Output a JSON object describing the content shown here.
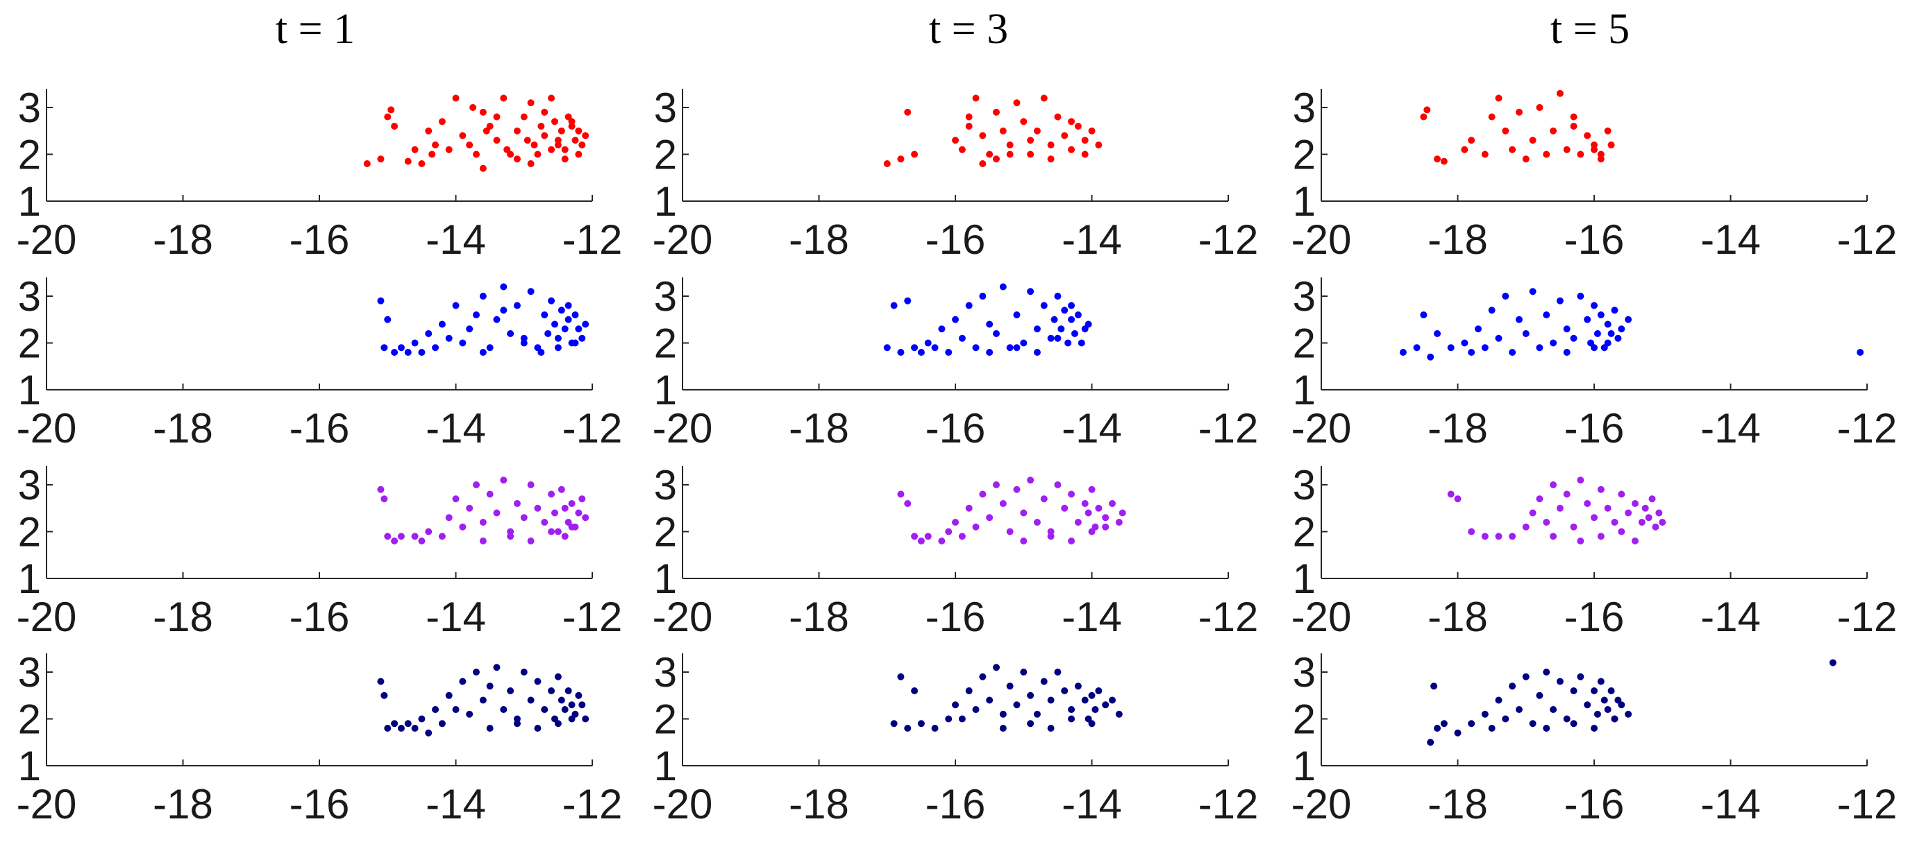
{
  "column_titles": [
    "t = 1",
    "t = 3",
    "t = 5"
  ],
  "row_colors": [
    "#ff0000",
    "#0000ff",
    "#a020f0",
    "#000080"
  ],
  "chart_data": [
    {
      "type": "scatter",
      "title": "t = 1",
      "row": 0,
      "col": 0,
      "color": "#ff0000",
      "xlim": [
        -20,
        -12
      ],
      "ylim": [
        1,
        3.4
      ],
      "xticks": [
        -20,
        -18,
        -16,
        -14,
        -12
      ],
      "yticks": [
        1,
        2,
        3
      ],
      "x": [
        -15.3,
        -15.1,
        -15.0,
        -14.95,
        -14.9,
        -14.7,
        -14.6,
        -14.5,
        -14.4,
        -14.3,
        -14.35,
        -14.1,
        -14.0,
        -14.2,
        -13.9,
        -13.8,
        -13.7,
        -13.6,
        -13.5,
        -13.4,
        -13.3,
        -13.2,
        -13.1,
        -13.0,
        -12.9,
        -12.85,
        -12.8,
        -12.75,
        -12.7,
        -12.6,
        -12.55,
        -12.5,
        -12.45,
        -12.4,
        -12.35,
        -12.3,
        -12.25,
        -12.2,
        -12.15,
        -12.1,
        -13.6,
        -13.4,
        -13.1,
        -12.95,
        -12.6,
        -12.4,
        -12.3,
        -12.2,
        -13.75,
        -13.55,
        -13.25,
        -12.9,
        -12.7,
        -12.5
      ],
      "y": [
        1.8,
        1.9,
        2.8,
        2.95,
        2.6,
        1.85,
        2.1,
        1.8,
        2.5,
        2.2,
        2.0,
        2.1,
        3.2,
        2.7,
        2.4,
        2.2,
        2.0,
        2.9,
        2.6,
        2.3,
        3.2,
        2.0,
        2.5,
        2.8,
        3.1,
        2.2,
        2.0,
        2.6,
        2.4,
        3.2,
        2.7,
        2.3,
        2.5,
        2.1,
        2.8,
        2.6,
        2.3,
        2.5,
        2.2,
        2.4,
        1.7,
        2.8,
        1.9,
        2.3,
        2.1,
        1.9,
        2.7,
        2.0,
        3.0,
        2.5,
        2.1,
        1.8,
        2.9,
        2.2
      ]
    },
    {
      "type": "scatter",
      "title": "t = 3",
      "row": 0,
      "col": 1,
      "color": "#ff0000",
      "xlim": [
        -20,
        -12
      ],
      "ylim": [
        1,
        3.4
      ],
      "xticks": [
        -20,
        -18,
        -16,
        -14,
        -12
      ],
      "yticks": [
        1,
        2,
        3
      ],
      "x": [
        -17.0,
        -16.8,
        -16.7,
        -16.6,
        -16.0,
        -15.9,
        -15.8,
        -15.7,
        -15.6,
        -15.5,
        -15.4,
        -15.3,
        -15.2,
        -15.1,
        -15.0,
        -14.9,
        -14.8,
        -14.7,
        -14.6,
        -14.5,
        -14.4,
        -14.3,
        -14.2,
        -14.1,
        -14.0,
        -13.9,
        -15.6,
        -15.2,
        -14.9,
        -14.6,
        -14.3,
        -14.1,
        -15.8,
        -15.4
      ],
      "y": [
        1.8,
        1.9,
        2.9,
        2.0,
        2.3,
        2.1,
        2.6,
        3.2,
        2.4,
        2.0,
        2.9,
        2.5,
        2.2,
        3.1,
        2.7,
        2.0,
        2.5,
        3.2,
        2.2,
        2.8,
        2.4,
        2.1,
        2.6,
        2.3,
        2.5,
        2.2,
        1.8,
        2.0,
        2.3,
        1.9,
        2.7,
        2.0,
        2.8,
        1.9
      ]
    },
    {
      "type": "scatter",
      "title": "t = 5",
      "row": 0,
      "col": 2,
      "color": "#ff0000",
      "xlim": [
        -20,
        -12
      ],
      "ylim": [
        1,
        3.4
      ],
      "xticks": [
        -20,
        -18,
        -16,
        -14,
        -12
      ],
      "yticks": [
        1,
        2,
        3
      ],
      "x": [
        -18.5,
        -18.45,
        -18.3,
        -18.2,
        -17.9,
        -17.8,
        -17.6,
        -17.5,
        -17.4,
        -17.3,
        -17.2,
        -17.1,
        -17.0,
        -16.9,
        -16.8,
        -16.7,
        -16.6,
        -16.5,
        -16.4,
        -16.3,
        -16.2,
        -16.1,
        -16.0,
        -15.9,
        -15.8,
        -15.75,
        -16.3,
        -16.0,
        -15.9
      ],
      "y": [
        2.8,
        2.95,
        1.9,
        1.85,
        2.1,
        2.3,
        2.0,
        2.8,
        3.2,
        2.5,
        2.1,
        2.9,
        1.9,
        2.3,
        3.0,
        2.0,
        2.5,
        3.3,
        2.1,
        2.6,
        2.0,
        2.4,
        2.2,
        1.9,
        2.5,
        2.2,
        2.8,
        2.1,
        2.0
      ]
    },
    {
      "type": "scatter",
      "title": "",
      "row": 1,
      "col": 0,
      "color": "#0000ff",
      "xlim": [
        -20,
        -12
      ],
      "ylim": [
        1,
        3.4
      ],
      "xticks": [
        -20,
        -18,
        -16,
        -14,
        -12
      ],
      "yticks": [
        1,
        2,
        3
      ],
      "x": [
        -15.1,
        -15.05,
        -15.0,
        -14.9,
        -14.8,
        -14.7,
        -14.6,
        -14.5,
        -14.4,
        -14.3,
        -14.2,
        -14.1,
        -14.0,
        -13.9,
        -13.8,
        -13.7,
        -13.6,
        -13.5,
        -13.4,
        -13.3,
        -13.2,
        -13.1,
        -13.0,
        -12.9,
        -12.8,
        -12.7,
        -12.65,
        -12.6,
        -12.55,
        -12.5,
        -12.45,
        -12.4,
        -12.35,
        -12.3,
        -12.25,
        -12.2,
        -12.15,
        -12.1,
        -13.6,
        -13.3,
        -13.0,
        -12.75,
        -12.5,
        -12.35,
        -12.25
      ],
      "y": [
        2.9,
        1.9,
        2.5,
        1.8,
        1.9,
        1.8,
        2.0,
        1.8,
        2.2,
        1.9,
        2.4,
        2.1,
        2.8,
        2.0,
        2.3,
        2.6,
        3.0,
        1.9,
        2.5,
        3.2,
        2.2,
        2.8,
        2.0,
        3.1,
        1.9,
        2.6,
        2.2,
        2.9,
        2.4,
        2.1,
        2.7,
        2.3,
        2.5,
        2.0,
        2.6,
        2.3,
        2.1,
        2.4,
        1.8,
        2.7,
        2.1,
        1.8,
        1.9,
        2.8,
        2.0
      ]
    },
    {
      "type": "scatter",
      "title": "",
      "row": 1,
      "col": 1,
      "color": "#0000ff",
      "xlim": [
        -20,
        -12
      ],
      "ylim": [
        1,
        3.4
      ],
      "xticks": [
        -20,
        -18,
        -16,
        -14,
        -12
      ],
      "yticks": [
        1,
        2,
        3
      ],
      "x": [
        -17.0,
        -16.9,
        -16.8,
        -16.7,
        -16.6,
        -16.5,
        -16.4,
        -16.3,
        -16.2,
        -16.1,
        -16.0,
        -15.9,
        -15.8,
        -15.7,
        -15.6,
        -15.5,
        -15.4,
        -15.3,
        -15.2,
        -15.1,
        -15.0,
        -14.9,
        -14.8,
        -14.7,
        -14.6,
        -14.55,
        -14.5,
        -14.45,
        -14.4,
        -14.35,
        -14.3,
        -14.25,
        -14.2,
        -14.1,
        -14.05,
        -15.5,
        -15.1,
        -14.8,
        -14.5,
        -14.3,
        -14.15
      ],
      "y": [
        1.9,
        2.8,
        1.8,
        2.9,
        1.9,
        1.8,
        2.0,
        1.9,
        2.3,
        1.8,
        2.5,
        2.1,
        2.8,
        1.9,
        3.0,
        2.4,
        2.2,
        3.2,
        1.9,
        2.6,
        2.0,
        3.1,
        2.3,
        2.8,
        2.1,
        2.5,
        3.0,
        2.3,
        2.7,
        2.0,
        2.5,
        2.2,
        2.6,
        2.3,
        2.4,
        1.8,
        1.9,
        1.8,
        2.1,
        2.8,
        2.0
      ]
    },
    {
      "type": "scatter",
      "title": "",
      "row": 1,
      "col": 2,
      "color": "#0000ff",
      "xlim": [
        -20,
        -12
      ],
      "ylim": [
        1,
        3.4
      ],
      "xticks": [
        -20,
        -18,
        -16,
        -14,
        -12
      ],
      "yticks": [
        1,
        2,
        3
      ],
      "x": [
        -18.8,
        -18.6,
        -18.5,
        -18.4,
        -18.3,
        -18.1,
        -17.9,
        -17.8,
        -17.7,
        -17.6,
        -17.5,
        -17.4,
        -17.3,
        -17.2,
        -17.1,
        -17.0,
        -16.9,
        -16.8,
        -16.7,
        -16.6,
        -16.5,
        -16.4,
        -16.3,
        -16.2,
        -16.1,
        -16.05,
        -16.0,
        -15.95,
        -15.9,
        -15.85,
        -15.8,
        -15.75,
        -15.7,
        -15.65,
        -15.6,
        -15.5,
        -16.4,
        -16.0,
        -15.8,
        -12.1
      ],
      "y": [
        1.8,
        1.9,
        2.6,
        1.7,
        2.2,
        1.9,
        2.0,
        1.8,
        2.3,
        1.9,
        2.7,
        2.1,
        3.0,
        1.8,
        2.5,
        2.2,
        3.1,
        1.9,
        2.6,
        2.0,
        2.9,
        2.3,
        2.1,
        3.0,
        2.5,
        2.0,
        2.8,
        2.2,
        2.6,
        1.9,
        2.4,
        2.2,
        2.7,
        2.1,
        2.3,
        2.5,
        1.8,
        1.9,
        2.0,
        1.8
      ]
    },
    {
      "type": "scatter",
      "title": "",
      "row": 2,
      "col": 0,
      "color": "#a020f0",
      "xlim": [
        -20,
        -12
      ],
      "ylim": [
        1,
        3.4
      ],
      "xticks": [
        -20,
        -18,
        -16,
        -14,
        -12
      ],
      "yticks": [
        1,
        2,
        3
      ],
      "x": [
        -15.1,
        -15.05,
        -15.0,
        -14.9,
        -14.8,
        -14.6,
        -14.5,
        -14.4,
        -14.2,
        -14.1,
        -14.0,
        -13.9,
        -13.8,
        -13.7,
        -13.6,
        -13.5,
        -13.4,
        -13.3,
        -13.2,
        -13.1,
        -13.0,
        -12.9,
        -12.8,
        -12.7,
        -12.6,
        -12.55,
        -12.5,
        -12.45,
        -12.4,
        -12.35,
        -12.3,
        -12.25,
        -12.2,
        -12.15,
        -12.1,
        -13.6,
        -13.2,
        -12.9,
        -12.6,
        -12.4,
        -12.3
      ],
      "y": [
        2.9,
        2.7,
        1.9,
        1.8,
        1.9,
        1.9,
        1.8,
        2.0,
        1.9,
        2.3,
        2.7,
        2.1,
        2.5,
        3.0,
        2.2,
        2.8,
        2.4,
        3.1,
        2.0,
        2.6,
        2.3,
        3.0,
        2.5,
        2.2,
        2.8,
        2.4,
        2.0,
        2.9,
        2.5,
        2.2,
        2.6,
        2.1,
        2.4,
        2.7,
        2.3,
        1.8,
        1.9,
        1.8,
        2.0,
        1.9,
        2.1
      ]
    },
    {
      "type": "scatter",
      "title": "",
      "row": 2,
      "col": 1,
      "color": "#a020f0",
      "xlim": [
        -20,
        -12
      ],
      "ylim": [
        1,
        3.4
      ],
      "xticks": [
        -20,
        -18,
        -16,
        -14,
        -12
      ],
      "yticks": [
        1,
        2,
        3
      ],
      "x": [
        -16.8,
        -16.7,
        -16.6,
        -16.5,
        -16.4,
        -16.2,
        -16.1,
        -16.0,
        -15.9,
        -15.8,
        -15.7,
        -15.6,
        -15.5,
        -15.4,
        -15.3,
        -15.2,
        -15.1,
        -15.0,
        -14.9,
        -14.8,
        -14.7,
        -14.6,
        -14.5,
        -14.4,
        -14.3,
        -14.2,
        -14.1,
        -14.05,
        -14.0,
        -13.95,
        -13.9,
        -13.8,
        -13.7,
        -13.6,
        -13.55,
        -15.0,
        -14.6,
        -14.3,
        -14.0,
        -13.8
      ],
      "y": [
        2.8,
        2.6,
        1.9,
        1.8,
        1.9,
        1.8,
        2.0,
        2.2,
        1.9,
        2.5,
        2.1,
        2.8,
        2.3,
        3.0,
        2.6,
        2.0,
        2.9,
        2.4,
        3.1,
        2.2,
        2.7,
        2.0,
        3.0,
        2.5,
        2.8,
        2.2,
        2.6,
        2.4,
        2.9,
        2.1,
        2.5,
        2.3,
        2.6,
        2.2,
        2.4,
        1.8,
        1.9,
        1.8,
        2.0,
        2.1
      ]
    },
    {
      "type": "scatter",
      "title": "",
      "row": 2,
      "col": 2,
      "color": "#a020f0",
      "xlim": [
        -20,
        -12
      ],
      "ylim": [
        1,
        3.4
      ],
      "xticks": [
        -20,
        -18,
        -16,
        -14,
        -12
      ],
      "yticks": [
        1,
        2,
        3
      ],
      "x": [
        -18.1,
        -18.0,
        -17.8,
        -17.6,
        -17.4,
        -17.2,
        -17.0,
        -16.9,
        -16.8,
        -16.7,
        -16.6,
        -16.5,
        -16.4,
        -16.3,
        -16.2,
        -16.1,
        -16.0,
        -15.9,
        -15.8,
        -15.7,
        -15.6,
        -15.5,
        -15.4,
        -15.3,
        -15.25,
        -15.2,
        -15.15,
        -15.1,
        -15.05,
        -15.0,
        -16.6,
        -16.2,
        -15.9,
        -15.6,
        -15.4
      ],
      "y": [
        2.8,
        2.7,
        2.0,
        1.9,
        1.9,
        1.9,
        2.1,
        2.4,
        2.7,
        2.2,
        3.0,
        2.5,
        2.8,
        2.1,
        3.1,
        2.6,
        2.3,
        2.9,
        2.5,
        2.2,
        2.8,
        2.4,
        2.6,
        2.2,
        2.5,
        2.3,
        2.7,
        2.1,
        2.4,
        2.2,
        1.9,
        1.8,
        1.9,
        2.0,
        1.8
      ]
    },
    {
      "type": "scatter",
      "title": "",
      "row": 3,
      "col": 0,
      "color": "#000080",
      "xlim": [
        -20,
        -12
      ],
      "ylim": [
        1,
        3.4
      ],
      "xticks": [
        -20,
        -18,
        -16,
        -14,
        -12
      ],
      "yticks": [
        1,
        2,
        3
      ],
      "x": [
        -15.1,
        -15.05,
        -15.0,
        -14.9,
        -14.8,
        -14.7,
        -14.6,
        -14.5,
        -14.4,
        -14.3,
        -14.2,
        -14.1,
        -14.0,
        -13.9,
        -13.8,
        -13.7,
        -13.6,
        -13.5,
        -13.4,
        -13.3,
        -13.2,
        -13.1,
        -13.0,
        -12.9,
        -12.8,
        -12.7,
        -12.6,
        -12.55,
        -12.5,
        -12.45,
        -12.4,
        -12.35,
        -12.3,
        -12.25,
        -12.2,
        -12.15,
        -12.1,
        -13.5,
        -13.1,
        -12.8,
        -12.5,
        -12.3
      ],
      "y": [
        2.8,
        2.5,
        1.8,
        1.9,
        1.8,
        1.9,
        1.8,
        2.0,
        1.7,
        2.2,
        1.9,
        2.5,
        2.2,
        2.8,
        2.1,
        3.0,
        2.4,
        2.7,
        3.1,
        2.2,
        2.6,
        2.0,
        3.0,
        2.4,
        2.8,
        2.2,
        2.6,
        2.0,
        2.9,
        2.4,
        2.2,
        2.6,
        2.3,
        2.1,
        2.5,
        2.3,
        2.0,
        1.8,
        1.9,
        1.8,
        1.9,
        2.0
      ]
    },
    {
      "type": "scatter",
      "title": "",
      "row": 3,
      "col": 1,
      "color": "#000080",
      "xlim": [
        -20,
        -12
      ],
      "ylim": [
        1,
        3.4
      ],
      "xticks": [
        -20,
        -18,
        -16,
        -14,
        -12
      ],
      "yticks": [
        1,
        2,
        3
      ],
      "x": [
        -16.9,
        -16.8,
        -16.7,
        -16.6,
        -16.5,
        -16.3,
        -16.1,
        -16.0,
        -15.9,
        -15.8,
        -15.7,
        -15.6,
        -15.5,
        -15.4,
        -15.3,
        -15.2,
        -15.1,
        -15.0,
        -14.9,
        -14.8,
        -14.7,
        -14.6,
        -14.5,
        -14.4,
        -14.3,
        -14.2,
        -14.1,
        -14.05,
        -14.0,
        -13.95,
        -13.9,
        -13.8,
        -13.7,
        -13.6,
        -15.3,
        -14.9,
        -14.6,
        -14.3,
        -14.0
      ],
      "y": [
        1.9,
        2.9,
        1.8,
        2.6,
        1.9,
        1.8,
        2.0,
        2.3,
        2.0,
        2.6,
        2.2,
        2.9,
        2.4,
        3.1,
        2.1,
        2.7,
        2.3,
        3.0,
        2.5,
        2.1,
        2.8,
        2.4,
        3.0,
        2.6,
        2.2,
        2.7,
        2.4,
        2.0,
        2.5,
        2.2,
        2.6,
        2.3,
        2.4,
        2.1,
        1.8,
        1.9,
        1.8,
        2.0,
        1.9
      ]
    },
    {
      "type": "scatter",
      "title": "",
      "row": 3,
      "col": 2,
      "color": "#000080",
      "xlim": [
        -20,
        -12
      ],
      "ylim": [
        1,
        3.4
      ],
      "xticks": [
        -20,
        -18,
        -16,
        -14,
        -12
      ],
      "yticks": [
        1,
        2,
        3
      ],
      "x": [
        -18.4,
        -18.35,
        -18.3,
        -18.2,
        -18.0,
        -17.8,
        -17.6,
        -17.5,
        -17.4,
        -17.3,
        -17.2,
        -17.1,
        -17.0,
        -16.9,
        -16.8,
        -16.7,
        -16.6,
        -16.5,
        -16.4,
        -16.3,
        -16.2,
        -16.1,
        -16.0,
        -15.95,
        -15.9,
        -15.85,
        -15.8,
        -15.75,
        -15.7,
        -15.65,
        -15.6,
        -15.5,
        -16.7,
        -16.3,
        -16.0,
        -15.7,
        -12.5
      ],
      "y": [
        1.5,
        2.7,
        1.8,
        1.9,
        1.7,
        1.9,
        2.1,
        1.8,
        2.4,
        2.0,
        2.7,
        2.2,
        2.9,
        1.9,
        2.5,
        3.0,
        2.2,
        2.8,
        2.0,
        2.6,
        2.9,
        2.3,
        2.6,
        2.1,
        2.8,
        2.4,
        2.2,
        2.6,
        2.0,
        2.4,
        2.3,
        2.1,
        1.8,
        1.9,
        1.8,
        2.0,
        3.2
      ]
    }
  ]
}
